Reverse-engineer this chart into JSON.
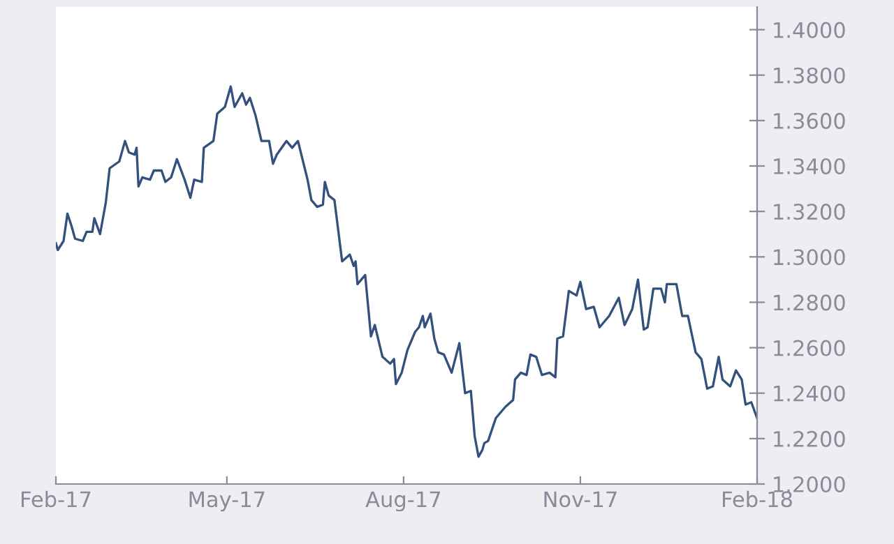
{
  "chart_data": {
    "type": "line",
    "x": [
      "2017-02-01",
      "2017-02-02",
      "2017-02-05",
      "2017-02-07",
      "2017-02-09",
      "2017-02-11",
      "2017-02-15",
      "2017-02-17",
      "2017-02-20",
      "2017-02-21",
      "2017-02-24",
      "2017-02-27",
      "2017-03-01",
      "2017-03-06",
      "2017-03-09",
      "2017-03-11",
      "2017-03-14",
      "2017-03-15",
      "2017-03-16",
      "2017-03-18",
      "2017-03-22",
      "2017-03-24",
      "2017-03-28",
      "2017-03-30",
      "2017-04-02",
      "2017-04-05",
      "2017-04-09",
      "2017-04-12",
      "2017-04-14",
      "2017-04-18",
      "2017-04-19",
      "2017-04-24",
      "2017-04-26",
      "2017-04-30",
      "2017-05-03",
      "2017-05-05",
      "2017-05-09",
      "2017-05-11",
      "2017-05-13",
      "2017-05-16",
      "2017-05-19",
      "2017-05-23",
      "2017-05-25",
      "2017-05-27",
      "2017-06-01",
      "2017-06-04",
      "2017-06-07",
      "2017-06-12",
      "2017-06-14",
      "2017-06-17",
      "2017-06-20",
      "2017-06-21",
      "2017-06-23",
      "2017-06-26",
      "2017-06-30",
      "2017-07-04",
      "2017-07-06",
      "2017-07-07",
      "2017-07-08",
      "2017-07-12",
      "2017-07-15",
      "2017-07-17",
      "2017-07-21",
      "2017-07-25",
      "2017-07-27",
      "2017-07-28",
      "2017-07-31",
      "2017-08-03",
      "2017-08-07",
      "2017-08-09",
      "2017-08-11",
      "2017-08-12",
      "2017-08-15",
      "2017-08-17",
      "2017-08-19",
      "2017-08-22",
      "2017-08-26",
      "2017-08-30",
      "2017-09-02",
      "2017-09-05",
      "2017-09-07",
      "2017-09-09",
      "2017-09-11",
      "2017-09-12",
      "2017-09-14",
      "2017-09-18",
      "2017-09-23",
      "2017-09-27",
      "2017-09-28",
      "2017-10-01",
      "2017-10-04",
      "2017-10-06",
      "2017-10-09",
      "2017-10-12",
      "2017-10-16",
      "2017-10-19",
      "2017-10-20",
      "2017-10-23",
      "2017-10-26",
      "2017-10-30",
      "2017-11-01",
      "2017-11-04",
      "2017-11-08",
      "2017-11-11",
      "2017-11-16",
      "2017-11-21",
      "2017-11-24",
      "2017-11-28",
      "2017-12-01",
      "2017-12-04",
      "2017-12-06",
      "2017-12-09",
      "2017-12-13",
      "2017-12-15",
      "2017-12-16",
      "2017-12-21",
      "2017-12-24",
      "2017-12-27",
      "2017-12-31",
      "2018-01-03",
      "2018-01-06",
      "2018-01-09",
      "2018-01-12",
      "2018-01-14",
      "2018-01-18",
      "2018-01-21",
      "2018-01-24",
      "2018-01-26",
      "2018-01-29",
      "2018-02-01"
    ],
    "series": [
      {
        "color": "#34507c",
        "values": [
          1.306,
          1.303,
          1.307,
          1.319,
          1.314,
          1.308,
          1.307,
          1.311,
          1.311,
          1.317,
          1.31,
          1.324,
          1.339,
          1.342,
          1.351,
          1.346,
          1.345,
          1.348,
          1.331,
          1.335,
          1.334,
          1.338,
          1.338,
          1.333,
          1.335,
          1.343,
          1.334,
          1.326,
          1.334,
          1.333,
          1.348,
          1.351,
          1.363,
          1.366,
          1.375,
          1.366,
          1.372,
          1.367,
          1.37,
          1.362,
          1.351,
          1.351,
          1.341,
          1.345,
          1.351,
          1.348,
          1.351,
          1.334,
          1.325,
          1.322,
          1.323,
          1.333,
          1.327,
          1.325,
          1.298,
          1.301,
          1.296,
          1.298,
          1.288,
          1.292,
          1.265,
          1.27,
          1.256,
          1.253,
          1.255,
          1.244,
          1.249,
          1.259,
          1.267,
          1.269,
          1.274,
          1.269,
          1.275,
          1.264,
          1.258,
          1.257,
          1.249,
          1.262,
          1.24,
          1.241,
          1.221,
          1.212,
          1.215,
          1.218,
          1.219,
          1.229,
          1.234,
          1.237,
          1.246,
          1.249,
          1.248,
          1.257,
          1.256,
          1.248,
          1.249,
          1.247,
          1.264,
          1.265,
          1.285,
          1.283,
          1.289,
          1.277,
          1.278,
          1.269,
          1.274,
          1.282,
          1.27,
          1.277,
          1.29,
          1.268,
          1.269,
          1.286,
          1.286,
          1.28,
          1.288,
          1.288,
          1.274,
          1.274,
          1.258,
          1.255,
          1.242,
          1.243,
          1.256,
          1.246,
          1.243,
          1.25,
          1.246,
          1.235,
          1.236,
          1.229
        ]
      }
    ],
    "xlim": [
      "2017-02-01",
      "2018-02-01"
    ],
    "xticks": [
      {
        "value": "2017-02-01",
        "label": "Feb-17"
      },
      {
        "value": "2017-05-01",
        "label": "May-17"
      },
      {
        "value": "2017-08-01",
        "label": "Aug-17"
      },
      {
        "value": "2017-11-01",
        "label": "Nov-17"
      },
      {
        "value": "2018-02-01",
        "label": "Feb-18"
      }
    ],
    "ylim": [
      1.2,
      1.41
    ],
    "yticks": [
      {
        "value": 1.2,
        "label": "1.2000"
      },
      {
        "value": 1.22,
        "label": "1.2200"
      },
      {
        "value": 1.24,
        "label": "1.2400"
      },
      {
        "value": 1.26,
        "label": "1.2600"
      },
      {
        "value": 1.28,
        "label": "1.2800"
      },
      {
        "value": 1.3,
        "label": "1.3000"
      },
      {
        "value": 1.32,
        "label": "1.3200"
      },
      {
        "value": 1.34,
        "label": "1.3400"
      },
      {
        "value": 1.36,
        "label": "1.3600"
      },
      {
        "value": 1.38,
        "label": "1.3800"
      },
      {
        "value": 1.4,
        "label": "1.4000"
      }
    ],
    "grid": false,
    "legend": false,
    "marker": "none",
    "line_style": "solid"
  }
}
